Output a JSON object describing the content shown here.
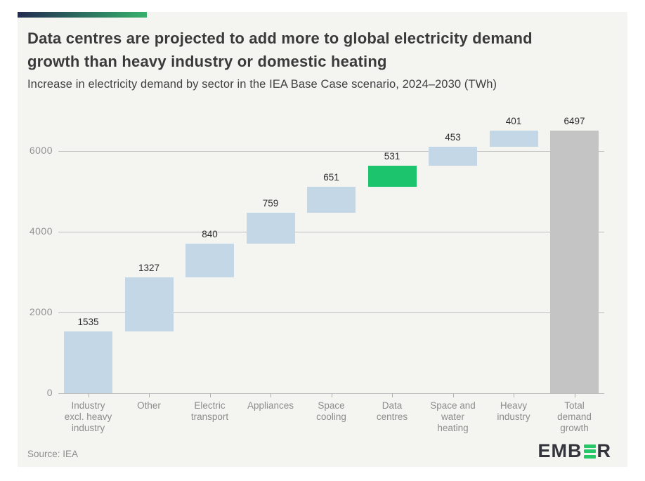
{
  "header": {
    "title": "Data centres are projected to add more to global electricity demand\ngrowth than heavy industry or domestic heating",
    "subtitle": "Increase in electricity demand by sector in the IEA Base Case scenario, 2024–2030 (TWh)"
  },
  "chart_data": {
    "type": "bar",
    "subtype": "waterfall",
    "title": "Data centres are projected to add more to global electricity demand growth than heavy industry or domestic heating",
    "subtitle": "Increase in electricity demand by sector in the IEA Base Case scenario, 2024–2030 (TWh)",
    "categories": [
      "Industry\nexcl. heavy\nindustry",
      "Other",
      "Electric\ntransport",
      "Appliances",
      "Space\ncooling",
      "Data\ncentres",
      "Space and\nwater\nheating",
      "Heavy\nindustry",
      "Total\ndemand\ngrowth"
    ],
    "values": [
      1535,
      1327,
      840,
      759,
      651,
      531,
      453,
      401,
      6497
    ],
    "bar_types": [
      "rise",
      "rise",
      "rise",
      "rise",
      "rise",
      "highlight",
      "rise",
      "rise",
      "total"
    ],
    "cumulative_ends": [
      1535,
      2862,
      3702,
      4461,
      5112,
      5643,
      6096,
      6497,
      6497
    ],
    "xlabel": "",
    "ylabel": "TWh",
    "yticks": [
      0,
      2000,
      4000,
      6000
    ],
    "ylim": [
      0,
      6800
    ],
    "grid": true,
    "legend": false,
    "value_labels_shown": true,
    "highlighted_category": "Data centres"
  },
  "footer": {
    "source": "Source: IEA",
    "logo_text_1": "EMB",
    "logo_text_2": "R"
  },
  "colors": {
    "card_bg": "#f4f4f1",
    "bar_rise": "#c4d7e7",
    "bar_highlight": "#1cc46d",
    "bar_total": "#c4c4c4",
    "gridline": "#bdbdbd",
    "tick": "#b0b0b0",
    "accent_gradient_start": "#222b52",
    "accent_gradient_end": "#36b16c",
    "logo_dark": "#34343c",
    "logo_green": "#25c768"
  }
}
